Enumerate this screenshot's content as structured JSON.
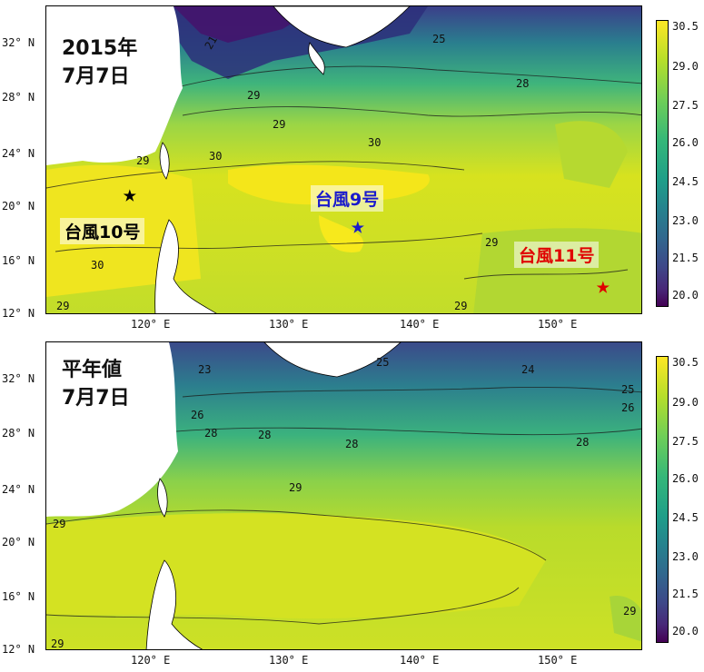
{
  "panels": [
    {
      "title_line1": "2015年",
      "title_line2": "7月7日",
      "typhoons": [
        {
          "label": "台風10号",
          "color": "#000000"
        },
        {
          "label": "台風9号",
          "color": "#1a1acc"
        },
        {
          "label": "台風11号",
          "color": "#e00000"
        }
      ],
      "star_glyph": "★"
    },
    {
      "title_line1": "平年値",
      "title_line2": "7月7日"
    }
  ],
  "lat_labels": [
    "32° N",
    "28° N",
    "24° N",
    "20° N",
    "16° N",
    "12° N"
  ],
  "lon_labels": [
    "120° E",
    "130° E",
    "140° E",
    "150° E"
  ],
  "colorbar_labels": [
    "30.5",
    "29.0",
    "27.5",
    "26.0",
    "24.5",
    "23.0",
    "21.5",
    "20.0"
  ],
  "contours_top": [
    "21",
    "25",
    "28",
    "29",
    "29",
    "30",
    "30",
    "29",
    "29",
    "30",
    "29",
    "29"
  ],
  "contours_bottom": [
    "23",
    "25",
    "24",
    "25",
    "26",
    "26",
    "28",
    "28",
    "28",
    "28",
    "29",
    "29",
    "29",
    "29"
  ],
  "colors": {
    "warmest": "#fde725",
    "warm": "#c8e020",
    "mid": "#5ec962",
    "cool": "#21918c",
    "cold": "#3b528b",
    "coldest": "#440154",
    "land": "#ffffff"
  }
}
